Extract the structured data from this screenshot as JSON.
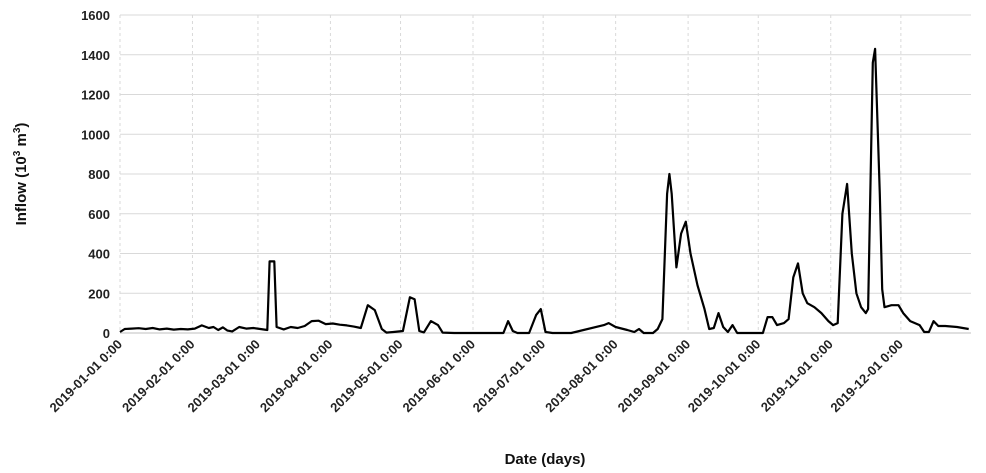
{
  "chart_data": {
    "type": "line",
    "title": "",
    "xlabel": "Date (days)",
    "ylabel_main": "Inflow (10",
    "ylabel_exp": "3",
    "ylabel_mid": " m",
    "ylabel_exp2": "3",
    "ylabel_end": ")",
    "ylim": [
      0,
      1600
    ],
    "yticks": [
      0,
      200,
      400,
      600,
      800,
      1000,
      1200,
      1400,
      1600
    ],
    "xlim": [
      "2019-01-01",
      "2019-12-31"
    ],
    "xticks": [
      "2019-01-01 0:00",
      "2019-02-01 0:00",
      "2019-03-01 0:00",
      "2019-04-01 0:00",
      "2019-05-01 0:00",
      "2019-06-01 0:00",
      "2019-07-01 0:00",
      "2019-08-01 0:00",
      "2019-09-01 0:00",
      "2019-10-01 0:00",
      "2019-11-01 0:00",
      "2019-12-01 0:00"
    ],
    "grid": "horizontal and vertical",
    "series": [
      {
        "color": "#000000",
        "points": [
          [
            "2019-01-01",
            5
          ],
          [
            "2019-01-03",
            20
          ],
          [
            "2019-01-06",
            22
          ],
          [
            "2019-01-09",
            24
          ],
          [
            "2019-01-12",
            20
          ],
          [
            "2019-01-15",
            25
          ],
          [
            "2019-01-18",
            18
          ],
          [
            "2019-01-21",
            22
          ],
          [
            "2019-01-24",
            17
          ],
          [
            "2019-01-27",
            20
          ],
          [
            "2019-01-30",
            18
          ],
          [
            "2019-02-02",
            22
          ],
          [
            "2019-02-05",
            38
          ],
          [
            "2019-02-08",
            25
          ],
          [
            "2019-02-10",
            30
          ],
          [
            "2019-02-12",
            15
          ],
          [
            "2019-02-14",
            28
          ],
          [
            "2019-02-16",
            12
          ],
          [
            "2019-02-18",
            8
          ],
          [
            "2019-02-21",
            30
          ],
          [
            "2019-02-24",
            22
          ],
          [
            "2019-02-27",
            25
          ],
          [
            "2019-03-02",
            20
          ],
          [
            "2019-03-05",
            15
          ],
          [
            "2019-03-06",
            360
          ],
          [
            "2019-03-08",
            360
          ],
          [
            "2019-03-09",
            30
          ],
          [
            "2019-03-12",
            18
          ],
          [
            "2019-03-15",
            30
          ],
          [
            "2019-03-18",
            25
          ],
          [
            "2019-03-21",
            35
          ],
          [
            "2019-03-24",
            60
          ],
          [
            "2019-03-27",
            62
          ],
          [
            "2019-03-30",
            45
          ],
          [
            "2019-04-02",
            48
          ],
          [
            "2019-04-05",
            42
          ],
          [
            "2019-04-08",
            38
          ],
          [
            "2019-04-11",
            32
          ],
          [
            "2019-04-14",
            25
          ],
          [
            "2019-04-17",
            140
          ],
          [
            "2019-04-20",
            115
          ],
          [
            "2019-04-23",
            20
          ],
          [
            "2019-04-25",
            2
          ],
          [
            "2019-04-28",
            5
          ],
          [
            "2019-05-02",
            10
          ],
          [
            "2019-05-05",
            180
          ],
          [
            "2019-05-07",
            170
          ],
          [
            "2019-05-09",
            10
          ],
          [
            "2019-05-11",
            3
          ],
          [
            "2019-05-14",
            60
          ],
          [
            "2019-05-17",
            40
          ],
          [
            "2019-05-19",
            2
          ],
          [
            "2019-05-24",
            0
          ],
          [
            "2019-06-05",
            0
          ],
          [
            "2019-06-14",
            0
          ],
          [
            "2019-06-16",
            60
          ],
          [
            "2019-06-18",
            10
          ],
          [
            "2019-06-20",
            0
          ],
          [
            "2019-06-25",
            0
          ],
          [
            "2019-06-28",
            90
          ],
          [
            "2019-06-30",
            120
          ],
          [
            "2019-07-02",
            5
          ],
          [
            "2019-07-05",
            0
          ],
          [
            "2019-07-13",
            0
          ],
          [
            "2019-07-27",
            40
          ],
          [
            "2019-07-29",
            50
          ],
          [
            "2019-08-01",
            30
          ],
          [
            "2019-08-06",
            15
          ],
          [
            "2019-08-09",
            5
          ],
          [
            "2019-08-11",
            20
          ],
          [
            "2019-08-13",
            0
          ],
          [
            "2019-08-17",
            0
          ],
          [
            "2019-08-19",
            20
          ],
          [
            "2019-08-21",
            70
          ],
          [
            "2019-08-23",
            700
          ],
          [
            "2019-08-24",
            800
          ],
          [
            "2019-08-25",
            700
          ],
          [
            "2019-08-27",
            330
          ],
          [
            "2019-08-29",
            500
          ],
          [
            "2019-08-31",
            560
          ],
          [
            "2019-09-02",
            400
          ],
          [
            "2019-09-05",
            240
          ],
          [
            "2019-09-08",
            120
          ],
          [
            "2019-09-10",
            20
          ],
          [
            "2019-09-12",
            25
          ],
          [
            "2019-09-14",
            100
          ],
          [
            "2019-09-16",
            30
          ],
          [
            "2019-09-18",
            5
          ],
          [
            "2019-09-20",
            40
          ],
          [
            "2019-09-22",
            0
          ],
          [
            "2019-09-28",
            0
          ],
          [
            "2019-10-03",
            0
          ],
          [
            "2019-10-05",
            80
          ],
          [
            "2019-10-07",
            80
          ],
          [
            "2019-10-09",
            40
          ],
          [
            "2019-10-12",
            50
          ],
          [
            "2019-10-14",
            70
          ],
          [
            "2019-10-16",
            280
          ],
          [
            "2019-10-18",
            350
          ],
          [
            "2019-10-20",
            200
          ],
          [
            "2019-10-22",
            150
          ],
          [
            "2019-10-25",
            130
          ],
          [
            "2019-10-28",
            100
          ],
          [
            "2019-10-31",
            60
          ],
          [
            "2019-11-02",
            40
          ],
          [
            "2019-11-04",
            50
          ],
          [
            "2019-11-06",
            600
          ],
          [
            "2019-11-08",
            750
          ],
          [
            "2019-11-10",
            400
          ],
          [
            "2019-11-12",
            200
          ],
          [
            "2019-11-14",
            130
          ],
          [
            "2019-11-16",
            100
          ],
          [
            "2019-11-17",
            120
          ],
          [
            "2019-11-19",
            1360
          ],
          [
            "2019-11-20",
            1430
          ],
          [
            "2019-11-22",
            700
          ],
          [
            "2019-11-23",
            220
          ],
          [
            "2019-11-24",
            130
          ],
          [
            "2019-11-27",
            140
          ],
          [
            "2019-11-30",
            140
          ],
          [
            "2019-12-02",
            100
          ],
          [
            "2019-12-05",
            60
          ],
          [
            "2019-12-09",
            40
          ],
          [
            "2019-12-11",
            5
          ],
          [
            "2019-12-13",
            5
          ],
          [
            "2019-12-15",
            60
          ],
          [
            "2019-12-17",
            35
          ],
          [
            "2019-12-20",
            35
          ],
          [
            "2019-12-25",
            30
          ],
          [
            "2019-12-30",
            20
          ]
        ]
      }
    ]
  }
}
